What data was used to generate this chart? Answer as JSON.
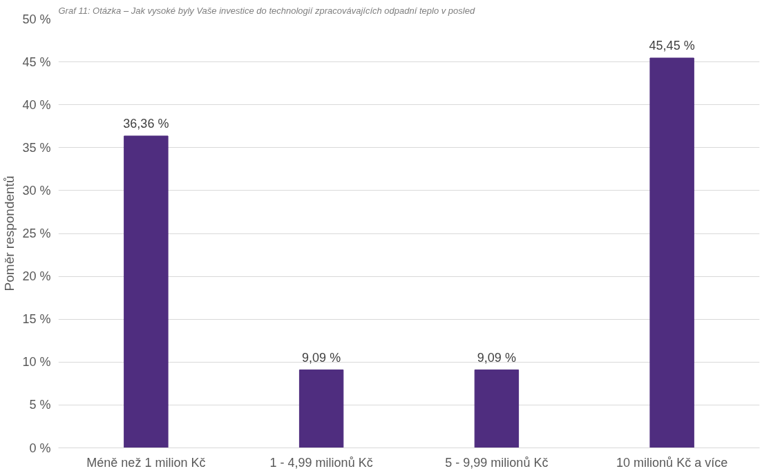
{
  "chart_data": {
    "type": "bar",
    "title": "Graf 11: Otázka – Jak vysoké byly Vaše investice do technologií zpracovávajících odpadní teplo v posled",
    "ylabel": "Poměr respondentů",
    "categories": [
      "Méně než 1 milion Kč",
      "1 - 4,99 milionů Kč",
      "5 - 9,99 milionů Kč",
      "10 milionů Kč a více"
    ],
    "values": [
      36.36,
      9.09,
      9.09,
      45.45
    ],
    "value_labels": [
      "36,36 %",
      "9,09 %",
      "9,09 %",
      "45,45 %"
    ],
    "color": "#4f2d7f",
    "ylim": [
      0,
      50
    ],
    "yticks": [
      {
        "value": 0,
        "label": "0 %"
      },
      {
        "value": 5,
        "label": "5 %"
      },
      {
        "value": 10,
        "label": "10 %"
      },
      {
        "value": 15,
        "label": "15 %"
      },
      {
        "value": 20,
        "label": "20 %"
      },
      {
        "value": 25,
        "label": "25 %"
      },
      {
        "value": 30,
        "label": "30 %"
      },
      {
        "value": 35,
        "label": "35 %"
      },
      {
        "value": 40,
        "label": "40 %"
      },
      {
        "value": 45,
        "label": "45 %"
      },
      {
        "value": 50,
        "label": "50 %"
      }
    ],
    "grid": "y"
  }
}
